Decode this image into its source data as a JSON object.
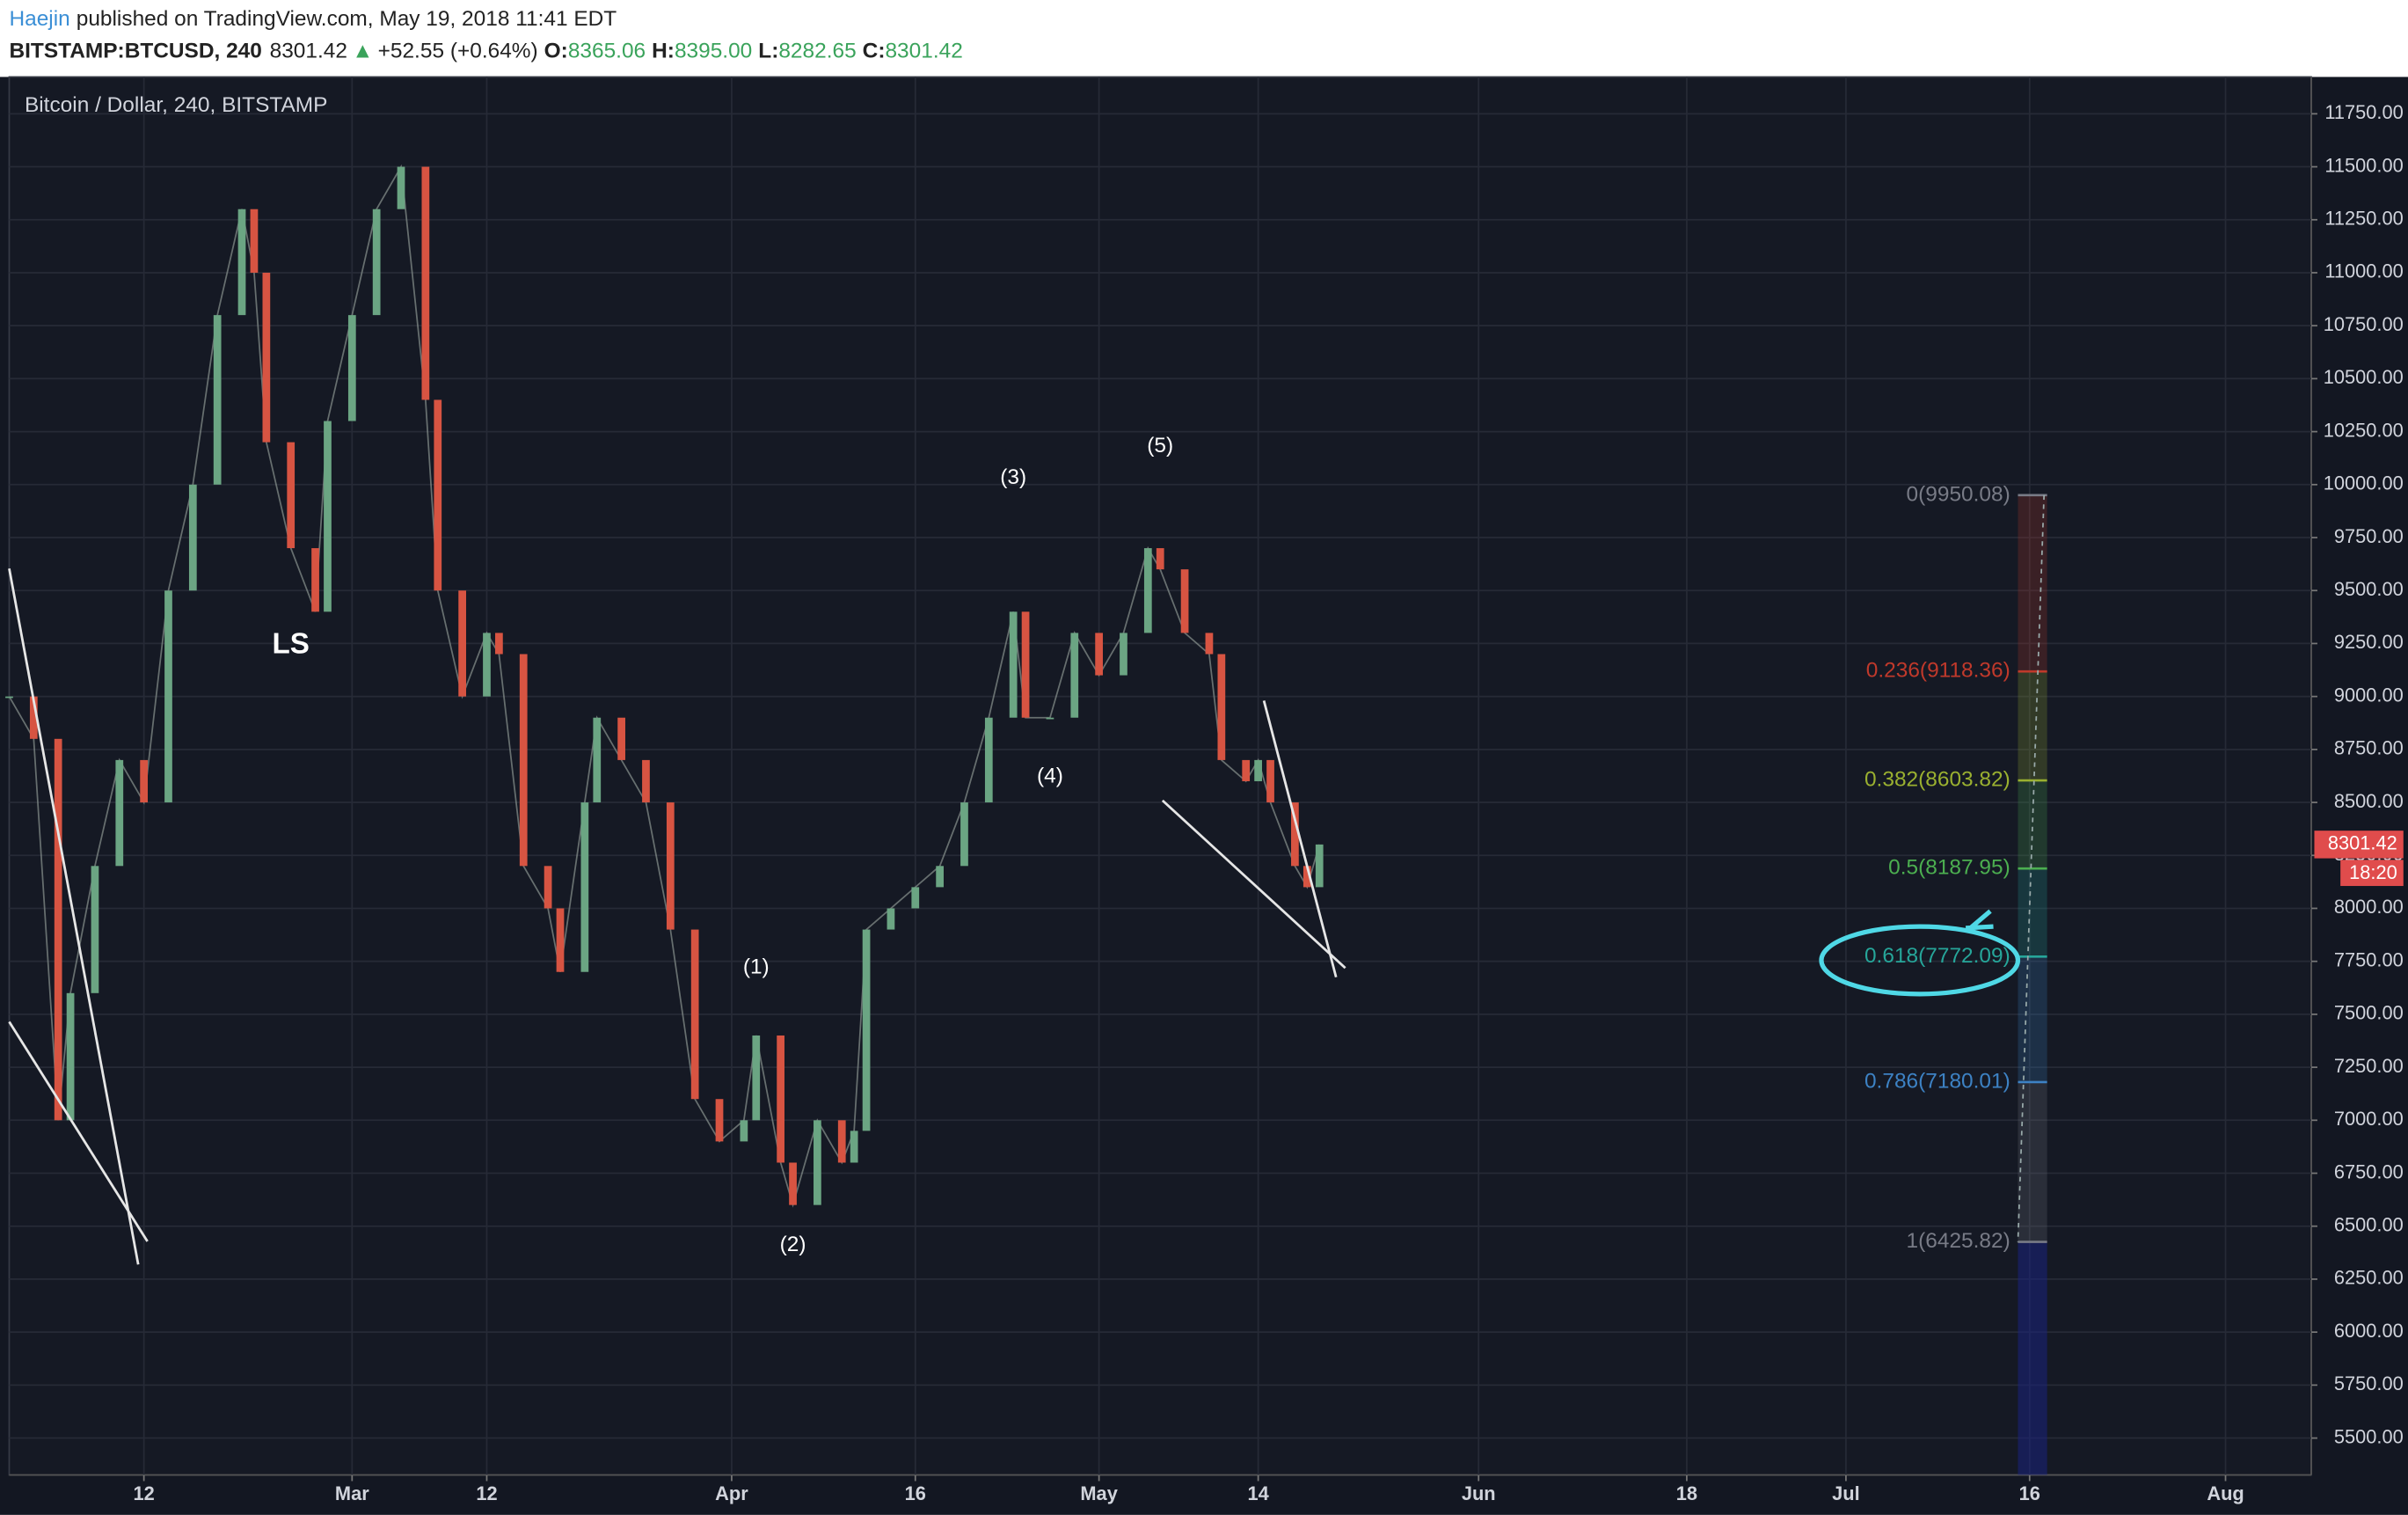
{
  "header": {
    "author": "Haejin",
    "published": "published on TradingView.com, May 19, 2018 11:41 EDT",
    "symbol": "BITSTAMP:BTCUSD, 240",
    "last": "8301.42",
    "arrow": "▲",
    "change": "+52.55 (+0.64%)",
    "o_label": "O:",
    "open": "8365.06",
    "h_label": "H:",
    "high": "8395.00",
    "l_label": "L:",
    "low": "8282.65",
    "c_label": "C:",
    "close": "8301.42"
  },
  "chart_data": {
    "type": "candlestick",
    "title": "Bitcoin / Dollar, 240, BITSTAMP",
    "x": [
      "2018-02-01",
      "2018-02-03",
      "2018-02-05",
      "2018-02-06",
      "2018-02-08",
      "2018-02-10",
      "2018-02-12",
      "2018-02-14",
      "2018-02-16",
      "2018-02-18",
      "2018-02-20",
      "2018-02-21",
      "2018-02-22",
      "2018-02-24",
      "2018-02-26",
      "2018-02-27",
      "2018-03-01",
      "2018-03-03",
      "2018-03-05",
      "2018-03-07",
      "2018-03-08",
      "2018-03-10",
      "2018-03-12",
      "2018-03-13",
      "2018-03-15",
      "2018-03-17",
      "2018-03-18",
      "2018-03-20",
      "2018-03-21",
      "2018-03-23",
      "2018-03-25",
      "2018-03-27",
      "2018-03-29",
      "2018-03-31",
      "2018-04-02",
      "2018-04-03",
      "2018-04-05",
      "2018-04-06",
      "2018-04-08",
      "2018-04-10",
      "2018-04-11",
      "2018-04-12",
      "2018-04-14",
      "2018-04-16",
      "2018-04-18",
      "2018-04-20",
      "2018-04-22",
      "2018-04-24",
      "2018-04-25",
      "2018-04-27",
      "2018-04-29",
      "2018-05-01",
      "2018-05-03",
      "2018-05-05",
      "2018-05-06",
      "2018-05-08",
      "2018-05-10",
      "2018-05-11",
      "2018-05-13",
      "2018-05-14",
      "2018-05-15",
      "2018-05-17",
      "2018-05-18",
      "2018-05-19"
    ],
    "values": [
      9000,
      8800,
      7000,
      7600,
      8200,
      8700,
      8500,
      9500,
      10000,
      10800,
      11300,
      11000,
      10200,
      9700,
      9400,
      10300,
      10800,
      11300,
      11500,
      10400,
      9500,
      9000,
      9300,
      9200,
      8200,
      8000,
      7700,
      8500,
      8900,
      8700,
      8500,
      7900,
      7100,
      6900,
      7000,
      7400,
      6800,
      6600,
      7000,
      6800,
      6950,
      7900,
      8000,
      8100,
      8200,
      8500,
      8900,
      9400,
      8900,
      8900,
      9300,
      9100,
      9300,
      9700,
      9600,
      9300,
      9200,
      8700,
      8600,
      8700,
      8500,
      8200,
      8100,
      8301.42
    ],
    "up_color": "#6ba583",
    "down_color": "#d75442",
    "countdown": "18:20",
    "xlim": [
      "2018-02-01",
      "2018-08-08"
    ],
    "xticks": [
      {
        "value": "2018-02-12",
        "label": "12"
      },
      {
        "value": "2018-03-01",
        "label": "Mar"
      },
      {
        "value": "2018-03-12",
        "label": "12"
      },
      {
        "value": "2018-04-01",
        "label": "Apr"
      },
      {
        "value": "2018-04-16",
        "label": "16"
      },
      {
        "value": "2018-05-01",
        "label": "May"
      },
      {
        "value": "2018-05-14",
        "label": "14"
      },
      {
        "value": "2018-06-01",
        "label": "Jun"
      },
      {
        "value": "2018-06-18",
        "label": "18"
      },
      {
        "value": "2018-07-01",
        "label": "Jul"
      },
      {
        "value": "2018-07-16",
        "label": "16"
      },
      {
        "value": "2018-08-01",
        "label": "Aug"
      }
    ],
    "ylim": [
      5326,
      11924
    ],
    "yticks": [
      {
        "value": 5500,
        "label": "5500.00"
      },
      {
        "value": 5750,
        "label": "5750.00"
      },
      {
        "value": 6000,
        "label": "6000.00"
      },
      {
        "value": 6250,
        "label": "6250.00"
      },
      {
        "value": 6500,
        "label": "6500.00"
      },
      {
        "value": 6750,
        "label": "6750.00"
      },
      {
        "value": 7000,
        "label": "7000.00"
      },
      {
        "value": 7250,
        "label": "7250.00"
      },
      {
        "value": 7500,
        "label": "7500.00"
      },
      {
        "value": 7750,
        "label": "7750.00"
      },
      {
        "value": 8000,
        "label": "8000.00"
      },
      {
        "value": 8250,
        "label": "8250.00"
      },
      {
        "value": 8500,
        "label": "8500.00"
      },
      {
        "value": 8750,
        "label": "8750.00"
      },
      {
        "value": 9000,
        "label": "9000.00"
      },
      {
        "value": 9250,
        "label": "9250.00"
      },
      {
        "value": 9500,
        "label": "9500.00"
      },
      {
        "value": 9750,
        "label": "9750.00"
      },
      {
        "value": 10000,
        "label": "10000.00"
      },
      {
        "value": 10250,
        "label": "10250.00"
      },
      {
        "value": 10500,
        "label": "10500.00"
      },
      {
        "value": 10750,
        "label": "10750.00"
      },
      {
        "value": 11000,
        "label": "11000.00"
      },
      {
        "value": 11250,
        "label": "11250.00"
      },
      {
        "value": 11500,
        "label": "11500.00"
      },
      {
        "value": 11750,
        "label": "11750.00"
      }
    ],
    "grid": true,
    "fib_levels": [
      {
        "value": 9950.08,
        "label": "0(9950.08)",
        "color": "#787b86"
      },
      {
        "value": 9118.36,
        "label": "0.236(9118.36)",
        "color": "#c0392b"
      },
      {
        "value": 8603.82,
        "label": "0.382(8603.82)",
        "color": "#9ab030"
      },
      {
        "value": 8187.95,
        "label": "0.5(8187.95)",
        "color": "#4caf50"
      },
      {
        "value": 7772.09,
        "label": "0.618(7772.09)",
        "color": "#26a69a"
      },
      {
        "value": 7180.01,
        "label": "0.786(7180.01)",
        "color": "#3d82c4"
      },
      {
        "value": 6425.82,
        "label": "1(6425.82)",
        "color": "#787b86"
      }
    ],
    "annotations": [
      {
        "text": "(1)",
        "x": "2018-04-03",
        "y": 7720
      },
      {
        "text": "(2)",
        "x": "2018-04-06",
        "y": 6410
      },
      {
        "text": "(3)",
        "x": "2018-04-24",
        "y": 10030
      },
      {
        "text": "(4)",
        "x": "2018-04-27",
        "y": 8620
      },
      {
        "text": "(5)",
        "x": "2018-05-06",
        "y": 10180
      },
      {
        "text": "LS",
        "x": "2018-02-24",
        "y": 9240
      }
    ]
  }
}
